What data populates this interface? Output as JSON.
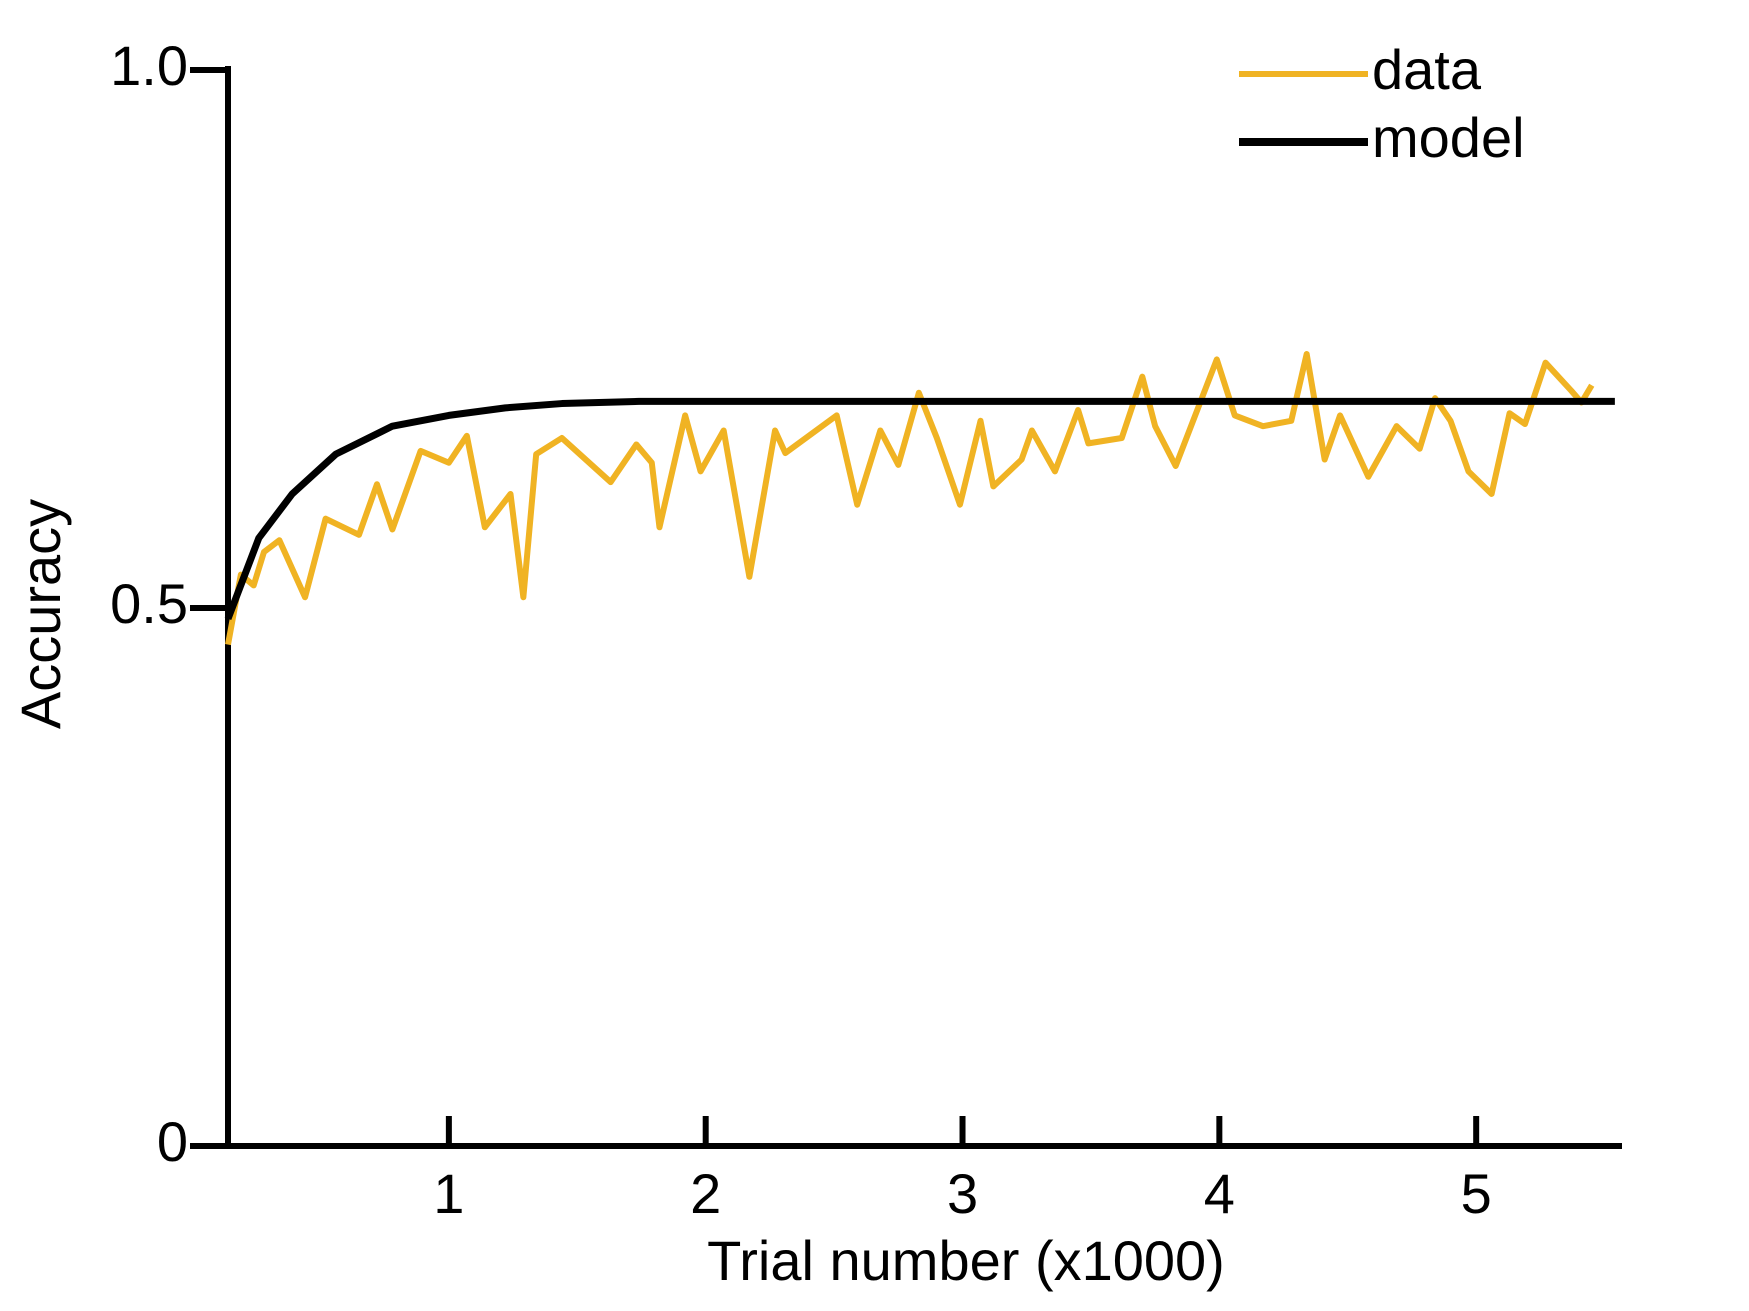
{
  "chart_data": {
    "type": "line",
    "x_label": "Trial number (x1000)",
    "y_label": "Accuracy",
    "xlim": [
      0.14,
      5.56
    ],
    "ylim": [
      0,
      1
    ],
    "xticks": [
      1,
      2,
      3,
      4,
      5
    ],
    "yticks": [
      0,
      0.5,
      {
        "value": 1,
        "label": "1.0"
      }
    ],
    "legend": "upper right",
    "series": [
      {
        "name": "data",
        "color": "#f0b323",
        "x": [
          0.14,
          0.19,
          0.24,
          0.28,
          0.34,
          0.44,
          0.52,
          0.65,
          0.72,
          0.78,
          0.89,
          1.0,
          1.07,
          1.14,
          1.24,
          1.29,
          1.34,
          1.44,
          1.63,
          1.73,
          1.79,
          1.82,
          1.92,
          1.98,
          2.07,
          2.17,
          2.27,
          2.31,
          2.51,
          2.59,
          2.68,
          2.75,
          2.83,
          2.9,
          2.99,
          3.07,
          3.12,
          3.23,
          3.27,
          3.36,
          3.45,
          3.49,
          3.62,
          3.7,
          3.75,
          3.83,
          3.99,
          4.06,
          4.17,
          4.28,
          4.34,
          4.41,
          4.47,
          4.58,
          4.69,
          4.78,
          4.84,
          4.9,
          4.97,
          5.06,
          5.13,
          5.19,
          5.27,
          5.37,
          5.41,
          5.45
        ],
        "values": [
          0.466,
          0.531,
          0.521,
          0.552,
          0.563,
          0.51,
          0.583,
          0.568,
          0.615,
          0.573,
          0.646,
          0.635,
          0.66,
          0.575,
          0.606,
          0.51,
          0.643,
          0.658,
          0.617,
          0.652,
          0.635,
          0.575,
          0.679,
          0.627,
          0.665,
          0.529,
          0.665,
          0.644,
          0.679,
          0.596,
          0.665,
          0.633,
          0.7,
          0.658,
          0.596,
          0.674,
          0.613,
          0.638,
          0.665,
          0.627,
          0.684,
          0.653,
          0.658,
          0.715,
          0.669,
          0.632,
          0.731,
          0.679,
          0.669,
          0.674,
          0.736,
          0.638,
          0.679,
          0.622,
          0.669,
          0.648,
          0.695,
          0.674,
          0.627,
          0.606,
          0.681,
          0.671,
          0.728,
          0.702,
          0.691,
          0.707
        ]
      },
      {
        "name": "model",
        "color": "#000000",
        "x": [
          0.14,
          0.26,
          0.39,
          0.56,
          0.78,
          1.0,
          1.22,
          1.44,
          1.74,
          5.54
        ],
        "values": [
          0.49,
          0.565,
          0.606,
          0.643,
          0.669,
          0.679,
          0.686,
          0.69,
          0.692,
          0.692
        ]
      }
    ]
  }
}
